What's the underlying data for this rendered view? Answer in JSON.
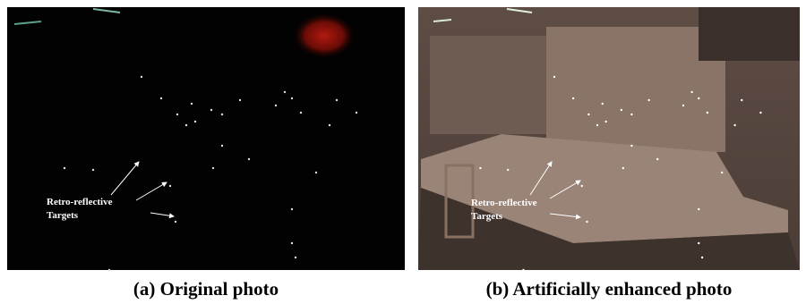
{
  "panels": [
    {
      "annotation": [
        "Retro-reflective",
        "Targets"
      ],
      "caption": "(a) Original photo"
    },
    {
      "annotation": [
        "Retro-reflective",
        "Targets"
      ],
      "caption": "(b) Artificially enhanced photo"
    }
  ]
}
